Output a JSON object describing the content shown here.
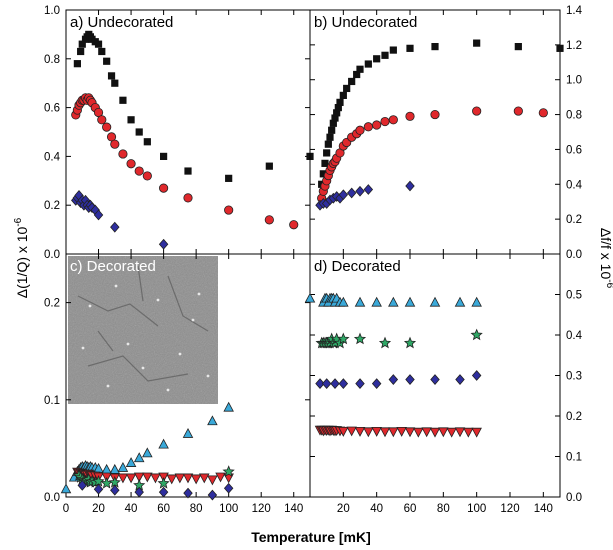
{
  "figure": {
    "xlabel": "Temperature [mK]",
    "ylabel_left": "Δ(1/Q) x 10",
    "ylabel_left_exp": "-6",
    "ylabel_right": "Δf/f x 10",
    "ylabel_right_exp": "-6"
  },
  "chart_data": [
    {
      "id": "a",
      "type": "scatter",
      "title": "a) Undecorated",
      "xlim": [
        0,
        150
      ],
      "ylim": [
        0,
        1.0
      ],
      "x_ticks": [
        "0",
        "20",
        "40",
        "60",
        "80",
        "100",
        "120",
        "140"
      ],
      "y_ticks": [
        0,
        0.2,
        0.4,
        0.6,
        0.8,
        1.0
      ],
      "y_tick_labels": [
        "0.0",
        "0.2",
        "0.4",
        "0.6",
        "0.8",
        "1.0"
      ],
      "series": [
        {
          "marker": "square",
          "color": "#111111",
          "x": [
            7,
            9,
            10,
            12,
            13,
            14,
            15,
            16,
            18,
            20,
            22,
            25,
            28,
            30,
            35,
            40,
            45,
            50,
            60,
            75,
            100,
            125,
            150
          ],
          "y": [
            0.78,
            0.83,
            0.86,
            0.88,
            0.89,
            0.9,
            0.89,
            0.88,
            0.87,
            0.86,
            0.83,
            0.79,
            0.73,
            0.7,
            0.63,
            0.55,
            0.5,
            0.46,
            0.4,
            0.34,
            0.31,
            0.36,
            0.4
          ]
        },
        {
          "marker": "circle",
          "color": "#e0282c",
          "x": [
            6,
            7,
            8,
            9,
            10,
            11,
            12,
            13,
            14,
            15,
            16,
            18,
            20,
            22,
            25,
            28,
            30,
            35,
            40,
            45,
            50,
            60,
            75,
            100,
            125,
            140
          ],
          "y": [
            0.57,
            0.59,
            0.61,
            0.62,
            0.63,
            0.63,
            0.64,
            0.63,
            0.64,
            0.63,
            0.62,
            0.6,
            0.58,
            0.55,
            0.52,
            0.48,
            0.45,
            0.41,
            0.37,
            0.34,
            0.32,
            0.27,
            0.23,
            0.18,
            0.14,
            0.12
          ]
        },
        {
          "marker": "diamond",
          "color": "#2e2e9e",
          "x": [
            6,
            7,
            8,
            9,
            10,
            11,
            12,
            13,
            14,
            15,
            16,
            18,
            20,
            30,
            60
          ],
          "y": [
            0.22,
            0.23,
            0.24,
            0.21,
            0.22,
            0.2,
            0.22,
            0.2,
            0.19,
            0.2,
            0.19,
            0.18,
            0.16,
            0.11,
            0.04
          ]
        }
      ]
    },
    {
      "id": "b",
      "type": "scatter",
      "title": "b) Undecorated",
      "xlim": [
        0,
        150
      ],
      "ylim": [
        0,
        1.4
      ],
      "x_ticks": [
        "0",
        "20",
        "40",
        "60",
        "80",
        "100",
        "120",
        "140"
      ],
      "y_ticks": [
        0,
        0.2,
        0.4,
        0.6,
        0.8,
        1.0,
        1.2,
        1.4
      ],
      "y_tick_labels": [
        "0.0",
        "0.2",
        "0.4",
        "0.6",
        "0.8",
        "1.0",
        "1.2",
        "1.4"
      ],
      "series": [
        {
          "marker": "square",
          "color": "#111111",
          "x": [
            7,
            8,
            9,
            10,
            11,
            12,
            13,
            14,
            15,
            16,
            17,
            18,
            20,
            22,
            25,
            28,
            30,
            35,
            40,
            45,
            50,
            60,
            75,
            100,
            125,
            150
          ],
          "y": [
            0.4,
            0.46,
            0.52,
            0.58,
            0.63,
            0.67,
            0.71,
            0.75,
            0.78,
            0.81,
            0.84,
            0.87,
            0.91,
            0.95,
            0.99,
            1.03,
            1.06,
            1.09,
            1.12,
            1.14,
            1.17,
            1.18,
            1.19,
            1.21,
            1.19,
            1.18
          ]
        },
        {
          "marker": "circle",
          "color": "#e0282c",
          "x": [
            7,
            8,
            9,
            10,
            11,
            12,
            13,
            14,
            15,
            16,
            18,
            20,
            22,
            25,
            28,
            30,
            35,
            40,
            45,
            50,
            60,
            75,
            100,
            125,
            140
          ],
          "y": [
            0.32,
            0.36,
            0.39,
            0.42,
            0.45,
            0.48,
            0.5,
            0.52,
            0.53,
            0.55,
            0.58,
            0.62,
            0.64,
            0.67,
            0.69,
            0.71,
            0.73,
            0.74,
            0.76,
            0.77,
            0.79,
            0.8,
            0.82,
            0.82,
            0.81
          ]
        },
        {
          "marker": "diamond",
          "color": "#2e2e9e",
          "x": [
            6,
            8,
            10,
            12,
            14,
            16,
            18,
            20,
            25,
            30,
            35,
            60
          ],
          "y": [
            0.28,
            0.29,
            0.29,
            0.31,
            0.32,
            0.33,
            0.32,
            0.34,
            0.35,
            0.36,
            0.37,
            0.39
          ]
        }
      ]
    },
    {
      "id": "c",
      "type": "scatter",
      "title": "c) Decorated",
      "xlim": [
        0,
        150
      ],
      "ylim": [
        0,
        0.25
      ],
      "x_ticks": [
        "0",
        "20",
        "40",
        "60",
        "80",
        "100",
        "120",
        "140"
      ],
      "y_ticks": [
        0,
        0.1,
        0.2
      ],
      "y_tick_labels": [
        "0.0",
        "0.1",
        "0.2"
      ],
      "inset": "micrograph",
      "series": [
        {
          "marker": "triangle-up",
          "color": "#3aa9d9",
          "x": [
            0,
            5,
            7,
            8,
            9,
            10,
            11,
            12,
            13,
            14,
            15,
            16,
            18,
            20,
            25,
            30,
            35,
            40,
            45,
            50,
            60,
            75,
            90,
            100
          ],
          "y": [
            0.008,
            0.02,
            0.026,
            0.028,
            0.03,
            0.031,
            0.03,
            0.032,
            0.031,
            0.03,
            0.031,
            0.03,
            0.03,
            0.029,
            0.028,
            0.028,
            0.03,
            0.035,
            0.04,
            0.045,
            0.054,
            0.065,
            0.078,
            0.092
          ]
        },
        {
          "marker": "triangle-down",
          "color": "#e0282c",
          "x": [
            7,
            8,
            9,
            10,
            11,
            12,
            13,
            14,
            15,
            16,
            18,
            20,
            25,
            30,
            35,
            40,
            45,
            50,
            55,
            60,
            65,
            70,
            75,
            80,
            85,
            90,
            95,
            100
          ],
          "y": [
            0.026,
            0.025,
            0.025,
            0.024,
            0.024,
            0.023,
            0.023,
            0.024,
            0.023,
            0.022,
            0.022,
            0.021,
            0.021,
            0.02,
            0.02,
            0.02,
            0.021,
            0.021,
            0.02,
            0.021,
            0.019,
            0.02,
            0.02,
            0.019,
            0.02,
            0.018,
            0.021,
            0.02
          ]
        },
        {
          "marker": "star",
          "color": "#2fa866",
          "x": [
            8,
            9,
            10,
            11,
            12,
            13,
            14,
            15,
            16,
            18,
            20,
            25,
            30,
            45,
            60,
            100
          ],
          "y": [
            0.022,
            0.02,
            0.018,
            0.017,
            0.016,
            0.017,
            0.018,
            0.015,
            0.016,
            0.015,
            0.016,
            0.014,
            0.015,
            0.012,
            0.014,
            0.026
          ]
        },
        {
          "marker": "diamond",
          "color": "#2e2e9e",
          "x": [
            10,
            20,
            30,
            45,
            60,
            75,
            90,
            100
          ],
          "y": [
            0.012,
            0.008,
            0.007,
            0.005,
            0.005,
            0.004,
            0.002,
            0.009
          ]
        }
      ]
    },
    {
      "id": "d",
      "type": "scatter",
      "title": "d) Decorated",
      "xlim": [
        0,
        150
      ],
      "ylim": [
        0,
        0.6
      ],
      "x_ticks": [
        "0",
        "20",
        "40",
        "60",
        "80",
        "100",
        "120",
        "140"
      ],
      "y_ticks": [
        0,
        0.1,
        0.2,
        0.3,
        0.4,
        0.5
      ],
      "y_tick_labels": [
        "0.0",
        "0.1",
        "0.2",
        "0.3",
        "0.4",
        "0.5"
      ],
      "series": [
        {
          "marker": "triangle-up",
          "color": "#3aa9d9",
          "x": [
            0,
            8,
            9,
            10,
            11,
            12,
            13,
            14,
            15,
            16,
            18,
            20,
            30,
            40,
            50,
            60,
            75,
            90,
            100
          ],
          "y": [
            0.49,
            0.48,
            0.49,
            0.49,
            0.48,
            0.49,
            0.49,
            0.49,
            0.48,
            0.49,
            0.48,
            0.48,
            0.48,
            0.48,
            0.48,
            0.48,
            0.48,
            0.48,
            0.48
          ]
        },
        {
          "marker": "star",
          "color": "#2fa866",
          "x": [
            7,
            8,
            9,
            10,
            11,
            12,
            13,
            14,
            15,
            16,
            18,
            20,
            30,
            45,
            60,
            100
          ],
          "y": [
            0.38,
            0.38,
            0.38,
            0.38,
            0.38,
            0.38,
            0.39,
            0.38,
            0.38,
            0.39,
            0.38,
            0.39,
            0.39,
            0.38,
            0.38,
            0.4
          ]
        },
        {
          "marker": "diamond",
          "color": "#2e2e9e",
          "x": [
            6,
            10,
            15,
            20,
            30,
            40,
            50,
            60,
            75,
            90,
            100
          ],
          "y": [
            0.28,
            0.28,
            0.28,
            0.28,
            0.28,
            0.28,
            0.29,
            0.29,
            0.29,
            0.29,
            0.3
          ]
        },
        {
          "marker": "triangle-down",
          "color": "#e0282c",
          "x": [
            6,
            7,
            8,
            9,
            10,
            11,
            12,
            13,
            14,
            15,
            16,
            18,
            20,
            25,
            30,
            35,
            40,
            45,
            50,
            55,
            60,
            65,
            70,
            75,
            80,
            85,
            90,
            95,
            100
          ],
          "y": [
            0.166,
            0.166,
            0.164,
            0.166,
            0.165,
            0.166,
            0.164,
            0.166,
            0.165,
            0.164,
            0.165,
            0.164,
            0.163,
            0.164,
            0.163,
            0.162,
            0.163,
            0.162,
            0.162,
            0.163,
            0.162,
            0.161,
            0.162,
            0.161,
            0.162,
            0.161,
            0.162,
            0.161,
            0.161
          ]
        }
      ]
    }
  ]
}
